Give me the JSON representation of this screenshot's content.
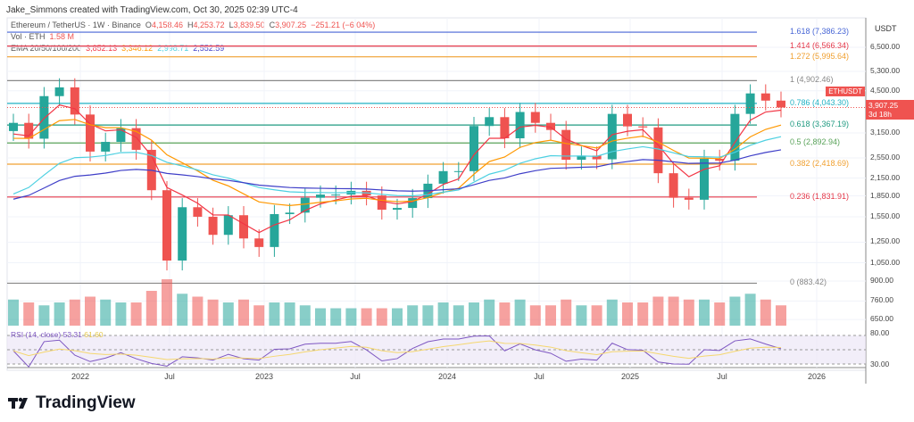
{
  "credit": "Jake_Simmons created with TradingView.com, Oct 30, 2025 02:39 UTC-4",
  "legend": {
    "symbol": "Ethereum / TetherUS · 1W · Binance",
    "o_label": "O",
    "o": "4,158.46",
    "h_label": "H",
    "h": "4,253.72",
    "l_label": "L",
    "l": "3,839.50",
    "c_label": "C",
    "c": "3,907.25",
    "change": "−251.21 (−6.04%)",
    "vol_label": "Vol · ETH",
    "vol": "1.58 M",
    "ema_label": "EMA 20/50/100/200",
    "ema20": "3,852.13",
    "ema50": "3,346.12",
    "ema100": "2,998.71",
    "ema200": "2,552.59",
    "rsi_label": "RSI (14, close)",
    "rsi": "53.31",
    "rsi_ma": "61.60"
  },
  "currency": "USDT",
  "price_tag": {
    "symbol": "ETHUSDT",
    "price": "3,907.25",
    "countdown": "3d 18h"
  },
  "logo": "TradingView",
  "colors": {
    "up": "#26a69a",
    "down": "#ef5350",
    "ema20": "#f23645",
    "ema50": "#ff9800",
    "ema100": "#4dd0e1",
    "ema200": "#3f3fc8",
    "rsi": "#7e57c2",
    "rsi_ma": "#f5d76e"
  },
  "chart_data": {
    "type": "candlestick",
    "scale": "log",
    "ylim": [
      600,
      8000
    ],
    "y_ticks": [
      "6,500.00",
      "5,300.00",
      "4,500.00",
      "3,150.00",
      "2,550.00",
      "2,150.00",
      "1,850.00",
      "1,550.00",
      "1,250.00",
      "1,050.00",
      "900.00",
      "760.00",
      "650.00"
    ],
    "y_tick_values": [
      6500,
      5300,
      4500,
      3150,
      2550,
      2150,
      1850,
      1550,
      1250,
      1050,
      900,
      760,
      650
    ],
    "rsi_ticks": [
      "80.00",
      "30.00"
    ],
    "x_ticks": [
      "2022",
      "Jul",
      "2023",
      "Jul",
      "2024",
      "Jul",
      "2025",
      "Jul",
      "2026"
    ],
    "closes": [
      3430,
      3000,
      4300,
      4630,
      3680,
      2690,
      2920,
      3280,
      2730,
      1940,
      1070,
      1680,
      1550,
      1330,
      1570,
      1290,
      1200,
      1585,
      1605,
      1820,
      1870,
      1870,
      1930,
      1855,
      1645,
      1670,
      1815,
      2050,
      2280,
      2280,
      3340,
      3600,
      3010,
      3760,
      3430,
      3230,
      2510,
      2600,
      2520,
      3700,
      3330,
      3300,
      2240,
      1820,
      1790,
      2530,
      2490,
      3700,
      4400,
      4140,
      3907
    ],
    "volume": [
      9,
      8,
      7,
      8,
      9,
      10,
      9,
      8,
      8,
      12,
      16,
      11,
      10,
      9,
      8,
      9,
      7,
      8,
      8,
      7,
      6,
      6,
      6,
      6,
      6,
      6,
      7,
      7,
      8,
      7,
      8,
      9,
      8,
      9,
      7,
      7,
      9,
      7,
      7,
      9,
      8,
      8,
      10,
      10,
      9,
      9,
      8,
      10,
      11,
      9,
      7
    ],
    "fib_levels": [
      {
        "label": "1.618 (7,386.23)",
        "value": 7386.23,
        "color": "#4766d6"
      },
      {
        "label": "1.414 (6,566.34)",
        "value": 6566.34,
        "color": "#e5394a"
      },
      {
        "label": "1.272 (5,995.64)",
        "value": 5995.64,
        "color": "#f0a030"
      },
      {
        "label": "1 (4,902.46)",
        "value": 4902.46,
        "color": "#888888"
      },
      {
        "label": "0.786 (4,043.30)",
        "value": 4043.3,
        "color": "#22b2c4"
      },
      {
        "label": "0.618 (3,367.19)",
        "value": 3367.19,
        "color": "#1f9a80"
      },
      {
        "label": "0.5 (2,892.94)",
        "value": 2892.94,
        "color": "#5aa35a"
      },
      {
        "label": "0.382 (2,418.69)",
        "value": 2418.69,
        "color": "#f0a030"
      },
      {
        "label": "0.236 (1,831.91)",
        "value": 1831.91,
        "color": "#e5394a"
      },
      {
        "label": "0 (883.42)",
        "value": 883.42,
        "color": "#888888"
      }
    ]
  }
}
